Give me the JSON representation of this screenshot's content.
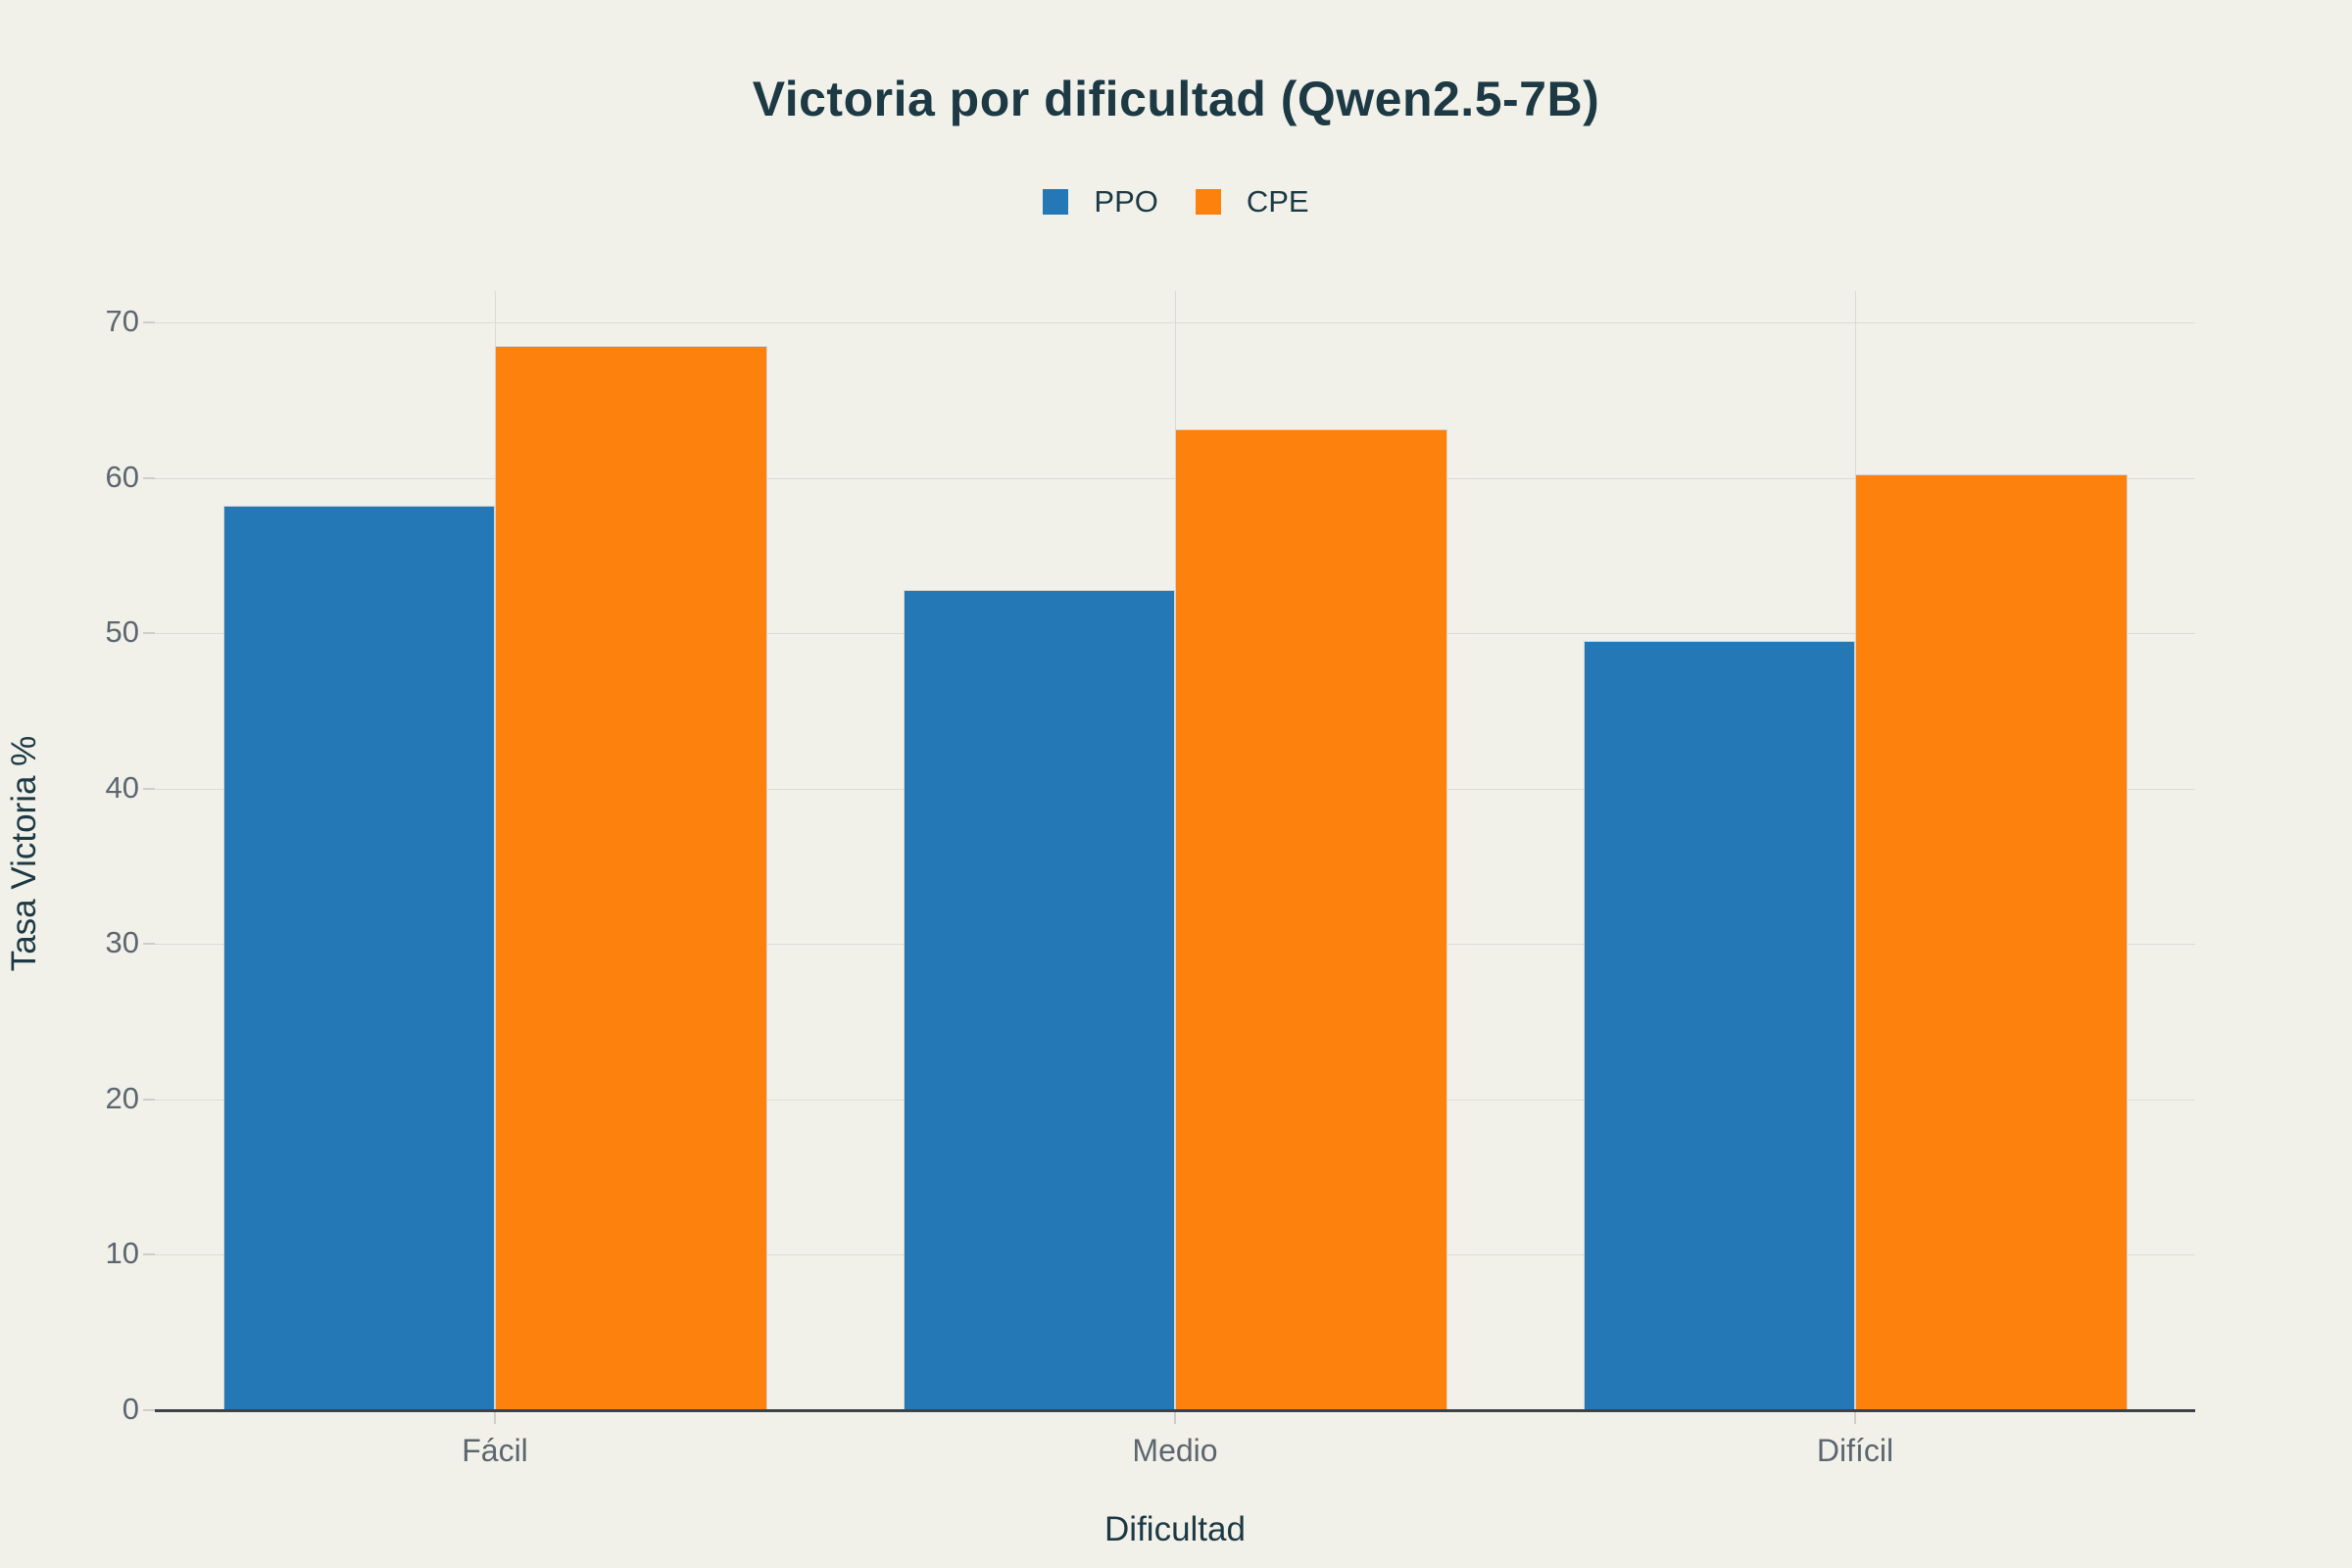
{
  "title": "Victoria por dificultad (Qwen2.5-7B)",
  "colors": {
    "background": "#f1f1ea",
    "ppo": "#2378b5",
    "cpe": "#fd810d",
    "heading_text": "#1c3944",
    "tick_text": "#5d666f",
    "gridline": "#dcdad4",
    "axis_line": "#3c4247"
  },
  "legend": {
    "items": [
      {
        "label": "PPO",
        "color": "#2378b5"
      },
      {
        "label": "CPE",
        "color": "#fd810d"
      }
    ]
  },
  "chart_data": {
    "type": "bar",
    "title": "Victoria por dificultad (Qwen2.5-7B)",
    "categories": [
      "Fácil",
      "Medio",
      "Difícil"
    ],
    "series": [
      {
        "name": "PPO",
        "color": "#2378b5",
        "values": [
          58.2,
          52.8,
          49.5
        ]
      },
      {
        "name": "CPE",
        "color": "#fd810d",
        "values": [
          68.5,
          63.1,
          60.2
        ]
      }
    ],
    "xlabel": "Dificultad",
    "ylabel": "Tasa Victoria %",
    "ylim": [
      0,
      72
    ],
    "yticks": [
      0,
      10,
      20,
      30,
      40,
      50,
      60,
      70
    ],
    "grid": true,
    "legend_position": "top-center"
  }
}
